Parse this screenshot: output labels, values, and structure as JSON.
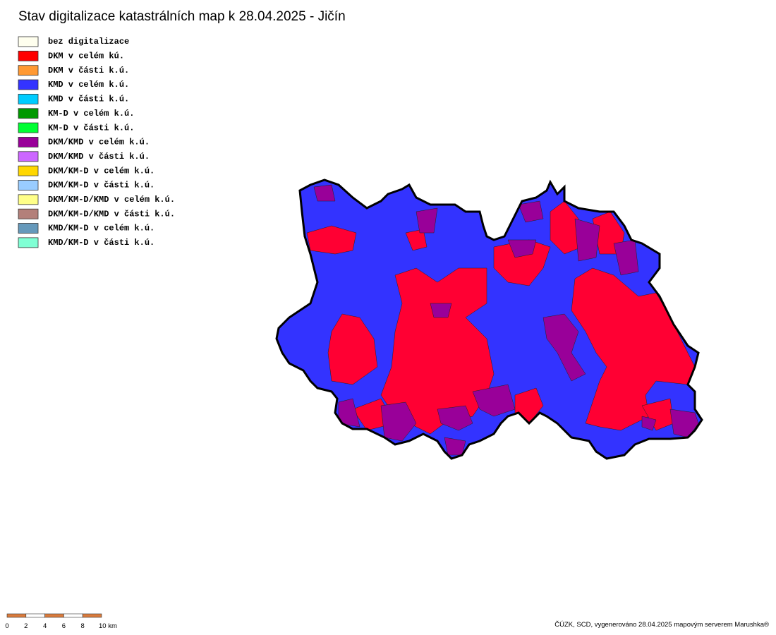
{
  "title": "Stav digitalizace katastrálních map k 28.04.2025 - Jičín",
  "legend": [
    {
      "label": "bez digitalizace",
      "color": "#ffffee"
    },
    {
      "label": "DKM v celém kú.",
      "color": "#ff0000"
    },
    {
      "label": "DKM v části k.ú.",
      "color": "#ff9933"
    },
    {
      "label": "KMD v celém k.ú.",
      "color": "#3333ff"
    },
    {
      "label": "KMD v části k.ú.",
      "color": "#00ccff"
    },
    {
      "label": "KM-D v celém k.ú.",
      "color": "#009900"
    },
    {
      "label": "KM-D v části k.ú.",
      "color": "#00ff33"
    },
    {
      "label": "DKM/KMD v celém k.ú.",
      "color": "#990099"
    },
    {
      "label": "DKM/KMD v části k.ú.",
      "color": "#cc66ff"
    },
    {
      "label": "DKM/KM-D v celém k.ú.",
      "color": "#ffd700"
    },
    {
      "label": "DKM/KM-D v části k.ú.",
      "color": "#99ccff"
    },
    {
      "label": "DKM/KM-D/KMD v celém k.ú.",
      "color": "#ffff88"
    },
    {
      "label": "DKM/KM-D/KMD v části k.ú.",
      "color": "#b3807a"
    },
    {
      "label": "KMD/KM-D v celém k.ú.",
      "color": "#6699bb"
    },
    {
      "label": "KMD/KM-D v části k.ú.",
      "color": "#80ffd4"
    }
  ],
  "scale": {
    "labels": [
      "0",
      "2",
      "4",
      "6",
      "8",
      "10 km"
    ],
    "colors": [
      "#d97b3d",
      "#ffffff"
    ]
  },
  "footer": "ČÚZK, SCD, vygenerováno 28.04.2025 mapovým serverem Marushka®"
}
